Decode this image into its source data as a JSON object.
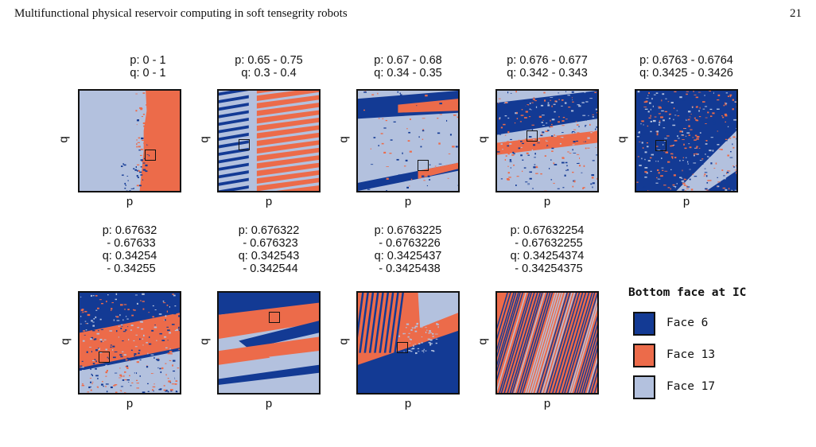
{
  "header": {
    "running_title": "Multifunctional physical reservoir computing in soft tensegrity robots",
    "page_number": "21"
  },
  "colors": {
    "face6": "#133a94",
    "face13": "#ec6b4a",
    "face17": "#b3c1de"
  },
  "axes": {
    "x_label": "p",
    "y_label": "q"
  },
  "panels": [
    {
      "title": "p: 0 - 1\nq: 0 - 1",
      "pattern": "wall"
    },
    {
      "title": "p: 0.65 - 0.75\nq: 0.3 - 0.4",
      "pattern": "stripes"
    },
    {
      "title": "p: 0.67 - 0.68\nq: 0.34 - 0.35",
      "pattern": "bands"
    },
    {
      "title": "p: 0.676 - 0.677\nq: 0.342 - 0.343",
      "pattern": "noisy"
    },
    {
      "title": "p: 0.6763 - 0.6764\nq: 0.3425 - 0.3426",
      "pattern": "darknoise"
    },
    {
      "title": "p: 0.67632\n - 0.67633\nq: 0.34254\n - 0.34255",
      "pattern": "mixed"
    },
    {
      "title": "p: 0.676322\n - 0.676323\nq: 0.342543\n - 0.342544",
      "pattern": "shards"
    },
    {
      "title": "p: 0.6763225\n - 0.6763226\nq: 0.3425437\n - 0.3425438",
      "pattern": "wedge"
    },
    {
      "title": "p: 0.67632254\n - 0.67632255\nq: 0.34254374\n - 0.34254375",
      "pattern": "diagonals"
    }
  ],
  "legend": {
    "title": "Bottom face at IC",
    "items": [
      {
        "label": "Face 6",
        "color": "#133a94"
      },
      {
        "label": "Face 13",
        "color": "#ec6b4a"
      },
      {
        "label": "Face 17",
        "color": "#b3c1de"
      }
    ]
  }
}
